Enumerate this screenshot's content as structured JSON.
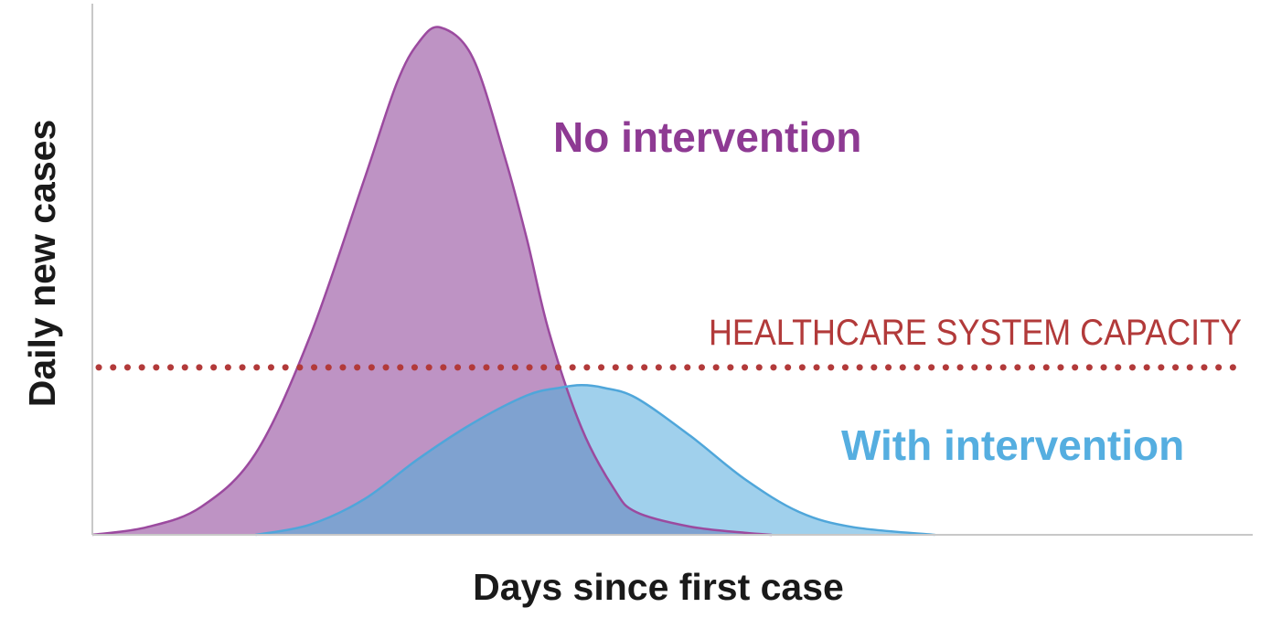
{
  "chart_data": {
    "type": "area",
    "xlabel": "Days since first case",
    "ylabel": "Daily new cases",
    "xlim": [
      0,
      100
    ],
    "ylim": [
      0,
      100
    ],
    "grid": false,
    "series": [
      {
        "name": "No intervention",
        "color": "#9b4a9f",
        "fill": "#be93c4",
        "x": [
          0,
          5,
          10,
          15,
          20,
          25,
          28,
          30,
          32,
          35,
          38,
          40,
          42,
          45,
          48,
          50,
          55,
          60,
          62.5
        ],
        "y": [
          0,
          1.5,
          5.5,
          16,
          39,
          70,
          89,
          97,
          100,
          94,
          74,
          58,
          40,
          21,
          9,
          4.5,
          1.6,
          0.4,
          0
        ]
      },
      {
        "name": "With intervention",
        "color": "#4fa6da",
        "fill": "#a0d0ec",
        "x": [
          15,
          20,
          25,
          30,
          35,
          40,
          43,
          45,
          47,
          50,
          55,
          60,
          65,
          70,
          77.5
        ],
        "y": [
          0,
          2,
          7,
          15,
          22,
          27.5,
          29,
          29.5,
          29,
          27,
          19.5,
          11,
          4.5,
          1.5,
          0
        ]
      }
    ],
    "overlap_fill": "#7fa2d0",
    "reference_lines": [
      {
        "label": "HEALTHCARE SYSTEM CAPACITY",
        "y": 33,
        "color": "#b23a3a",
        "style": "dotted"
      }
    ]
  }
}
